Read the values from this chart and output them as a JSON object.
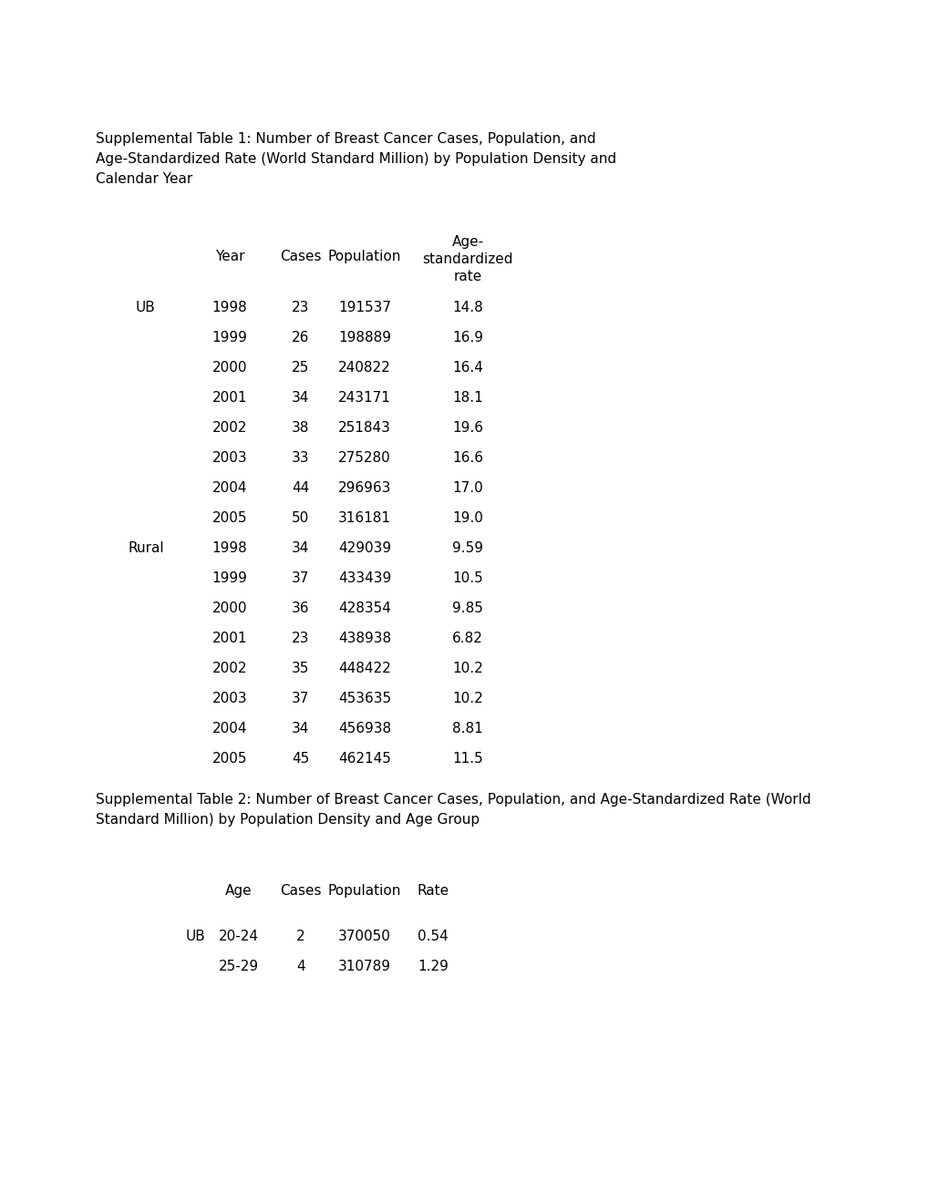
{
  "title1": "Supplemental Table 1: Number of Breast Cancer Cases, Population, and\nAge-Standardized Rate (World Standard Million) by Population Density and\nCalendar Year",
  "title2": "Supplemental Table 2: Number of Breast Cancer Cases, Population, and Age-Standardized Rate (World\nStandard Million) by Population Density and Age Group",
  "table1_data": [
    [
      "UB",
      "1998",
      "23",
      "191537",
      "14.8"
    ],
    [
      "",
      "1999",
      "26",
      "198889",
      "16.9"
    ],
    [
      "",
      "2000",
      "25",
      "240822",
      "16.4"
    ],
    [
      "",
      "2001",
      "34",
      "243171",
      "18.1"
    ],
    [
      "",
      "2002",
      "38",
      "251843",
      "19.6"
    ],
    [
      "",
      "2003",
      "33",
      "275280",
      "16.6"
    ],
    [
      "",
      "2004",
      "44",
      "296963",
      "17.0"
    ],
    [
      "",
      "2005",
      "50",
      "316181",
      "19.0"
    ],
    [
      "Rural",
      "1998",
      "34",
      "429039",
      "9.59"
    ],
    [
      "",
      "1999",
      "37",
      "433439",
      "10.5"
    ],
    [
      "",
      "2000",
      "36",
      "428354",
      "9.85"
    ],
    [
      "",
      "2001",
      "23",
      "438938",
      "6.82"
    ],
    [
      "",
      "2002",
      "35",
      "448422",
      "10.2"
    ],
    [
      "",
      "2003",
      "37",
      "453635",
      "10.2"
    ],
    [
      "",
      "2004",
      "34",
      "456938",
      "8.81"
    ],
    [
      "",
      "2005",
      "45",
      "462145",
      "11.5"
    ]
  ],
  "table2_data": [
    [
      "UB",
      "20-24",
      "2",
      "370050",
      "0.54"
    ],
    [
      "",
      "25-29",
      "4",
      "310789",
      "1.29"
    ]
  ],
  "bg_color": "#ffffff",
  "text_color": "#000000",
  "font_size": 11,
  "title_font_size": 11
}
